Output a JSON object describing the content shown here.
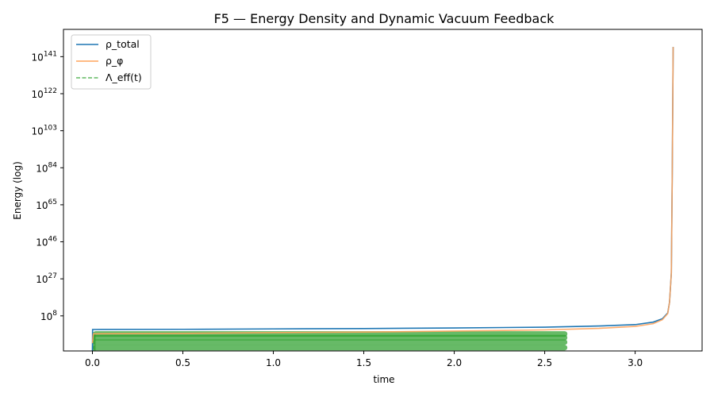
{
  "chart_data": {
    "type": "line",
    "title": "F5 — Energy Density and Dynamic Vacuum Feedback",
    "xlabel": "time",
    "ylabel": "Energy (log)",
    "xlim": [
      -0.16,
      3.37
    ],
    "ylim_log10": [
      -10,
      155
    ],
    "y_scale": "log",
    "xticks": [
      "0.0",
      "0.5",
      "1.0",
      "1.5",
      "2.0",
      "2.5",
      "3.0"
    ],
    "yticks": [
      {
        "base": "10",
        "exp": "8",
        "log10": 8
      },
      {
        "base": "10",
        "exp": "27",
        "log10": 27
      },
      {
        "base": "10",
        "exp": "46",
        "log10": 46
      },
      {
        "base": "10",
        "exp": "65",
        "log10": 65
      },
      {
        "base": "10",
        "exp": "84",
        "log10": 84
      },
      {
        "base": "10",
        "exp": "103",
        "log10": 103
      },
      {
        "base": "10",
        "exp": "122",
        "log10": 122
      },
      {
        "base": "10",
        "exp": "141",
        "log10": 141
      }
    ],
    "legend_position": "top-left",
    "series": [
      {
        "name": "ρ_total",
        "color": "#1f77b4",
        "style": "solid",
        "x": [
          0.0,
          0.001,
          0.5,
          1.0,
          1.5,
          2.0,
          2.5,
          2.8,
          3.0,
          3.1,
          3.15,
          3.18,
          3.19,
          3.2,
          3.205,
          3.21
        ],
        "log10": [
          -10,
          1.0,
          1.1,
          1.3,
          1.5,
          1.8,
          2.2,
          2.8,
          3.5,
          4.8,
          6.5,
          9.5,
          15,
          30,
          80,
          146
        ]
      },
      {
        "name": "ρ_φ",
        "color": "#ffa35c",
        "style": "solid",
        "x": [
          0.0,
          0.005,
          0.5,
          1.0,
          1.5,
          2.0,
          2.5,
          2.8,
          3.0,
          3.1,
          3.15,
          3.18,
          3.19,
          3.2,
          3.205,
          3.21
        ],
        "log10": [
          -6,
          -1.2,
          -1.0,
          -0.6,
          -0.3,
          0.2,
          0.8,
          1.6,
          2.6,
          4.0,
          6.0,
          9.2,
          15,
          30,
          80,
          146
        ]
      },
      {
        "name": "Λ_eff(t)",
        "color": "#2ca02c",
        "style": "dashed",
        "x": [
          0.0,
          2.61
        ],
        "bands_log10": [
          -1.3,
          -3.2,
          -5.5,
          -8.3
        ]
      }
    ]
  }
}
